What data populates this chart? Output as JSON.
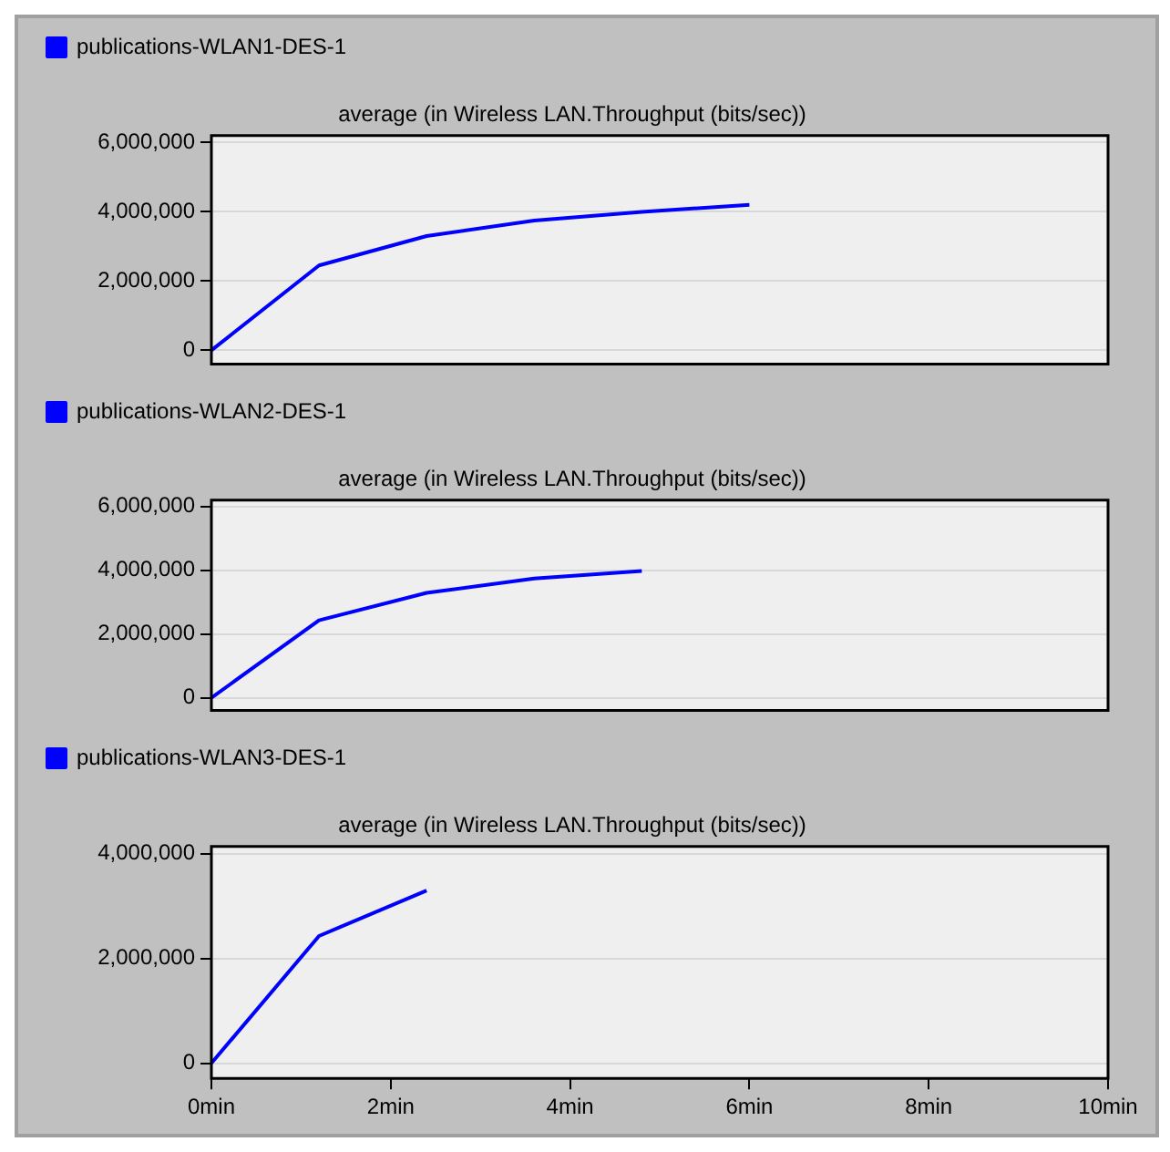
{
  "chart_data": [
    {
      "type": "line",
      "title": "average (in Wireless LAN.Throughput (bits/sec))",
      "x": [
        0,
        1.2,
        2.4,
        3.6,
        4.8,
        6
      ],
      "series": [
        {
          "name": "publications-WLAN1-DES-1",
          "color": "#0000ff",
          "values": [
            0,
            2450000,
            3300000,
            3750000,
            4000000,
            4200000
          ]
        }
      ],
      "xlim": [
        0,
        10
      ],
      "ylim": [
        -400000,
        6200000
      ],
      "yticks": [
        {
          "value": 0,
          "label": "0"
        },
        {
          "value": 2000000,
          "label": "2,000,000"
        },
        {
          "value": 4000000,
          "label": "4,000,000"
        },
        {
          "value": 6000000,
          "label": "6,000,000"
        }
      ],
      "grid": "y",
      "legend": "top left",
      "marker": "none",
      "line_style": "solid",
      "tick_labels": "y"
    },
    {
      "type": "line",
      "title": "average (in Wireless LAN.Throughput (bits/sec))",
      "x": [
        0,
        1.2,
        2.4,
        3.6,
        4.8
      ],
      "series": [
        {
          "name": "publications-WLAN2-DES-1",
          "color": "#0000ff",
          "values": [
            0,
            2430000,
            3290000,
            3740000,
            3980000
          ]
        }
      ],
      "xlim": [
        0,
        10
      ],
      "ylim": [
        -400000,
        6200000
      ],
      "yticks": [
        {
          "value": 0,
          "label": "0"
        },
        {
          "value": 2000000,
          "label": "2,000,000"
        },
        {
          "value": 4000000,
          "label": "4,000,000"
        },
        {
          "value": 6000000,
          "label": "6,000,000"
        }
      ],
      "grid": "y",
      "legend": "top left",
      "marker": "none",
      "line_style": "solid",
      "tick_labels": "y"
    },
    {
      "type": "line",
      "title": "average (in Wireless LAN.Throughput (bits/sec))",
      "x": [
        0,
        1.2,
        2.4
      ],
      "series": [
        {
          "name": "publications-WLAN3-DES-1",
          "color": "#0000ff",
          "values": [
            0,
            2430000,
            3300000
          ]
        }
      ],
      "xlim": [
        0,
        10
      ],
      "xticks": [
        {
          "value": 0,
          "label": "0min"
        },
        {
          "value": 2,
          "label": "2min"
        },
        {
          "value": 4,
          "label": "4min"
        },
        {
          "value": 6,
          "label": "6min"
        },
        {
          "value": 8,
          "label": "8min"
        },
        {
          "value": 10,
          "label": "10min"
        }
      ],
      "ylim": [
        -290000,
        4140000
      ],
      "yticks": [
        {
          "value": 0,
          "label": "0"
        },
        {
          "value": 2000000,
          "label": "2,000,000"
        },
        {
          "value": 4000000,
          "label": "4,000,000"
        }
      ],
      "grid": "y",
      "legend": "top left",
      "marker": "none",
      "line_style": "solid"
    }
  ]
}
